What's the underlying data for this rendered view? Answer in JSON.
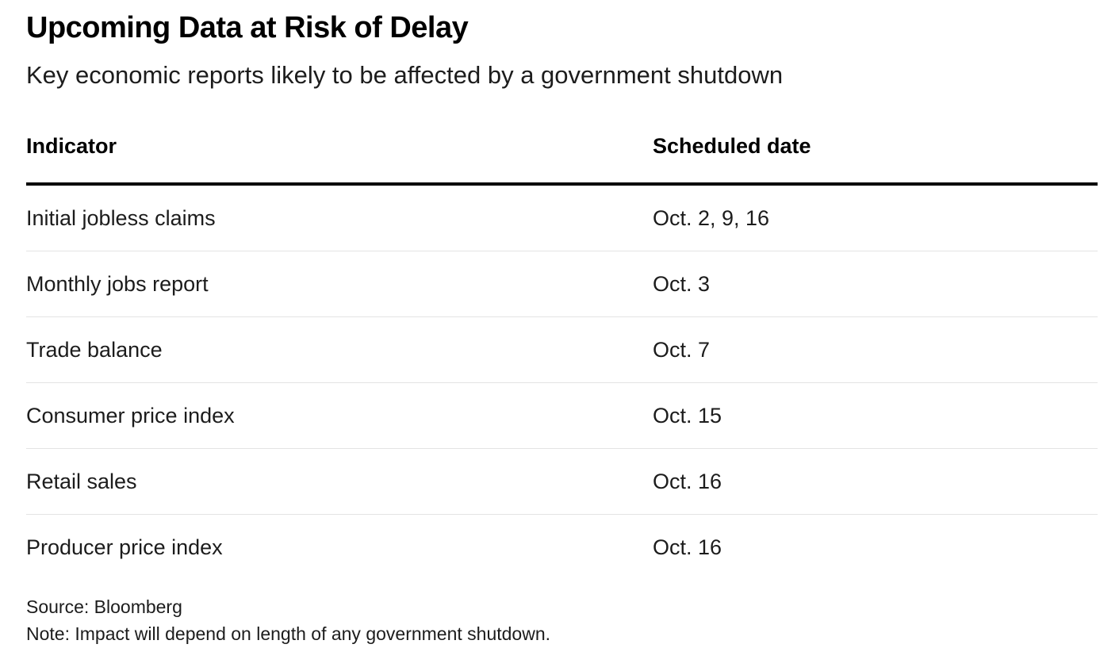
{
  "chart": {
    "title": "Upcoming Data at Risk of Delay",
    "subtitle": "Key economic reports likely to be affected by a government shutdown",
    "source": "Source: Bloomberg",
    "note": "Note: Impact will depend on length of any government shutdown."
  },
  "chart_data": {
    "type": "table",
    "title": "Upcoming Data at Risk of Delay",
    "subtitle": "Key economic reports likely to be affected by a government shutdown",
    "columns": [
      "Indicator",
      "Scheduled date"
    ],
    "rows": [
      [
        "Initial jobless claims",
        "Oct. 2, 9, 16"
      ],
      [
        "Monthly jobs report",
        "Oct. 3"
      ],
      [
        "Trade balance",
        "Oct. 7"
      ],
      [
        "Consumer price index",
        "Oct. 15"
      ],
      [
        "Retail sales",
        "Oct. 16"
      ],
      [
        "Producer price index",
        "Oct. 16"
      ]
    ],
    "source": "Source: Bloomberg",
    "note": "Note: Impact will depend on length of any government shutdown.",
    "layout": {
      "grid": "horizontal-row-dividers",
      "header_rule_color": "#000000",
      "divider_color": "#e3e3e3",
      "background": "#ffffff",
      "text_color": "#1c1c1c"
    }
  }
}
